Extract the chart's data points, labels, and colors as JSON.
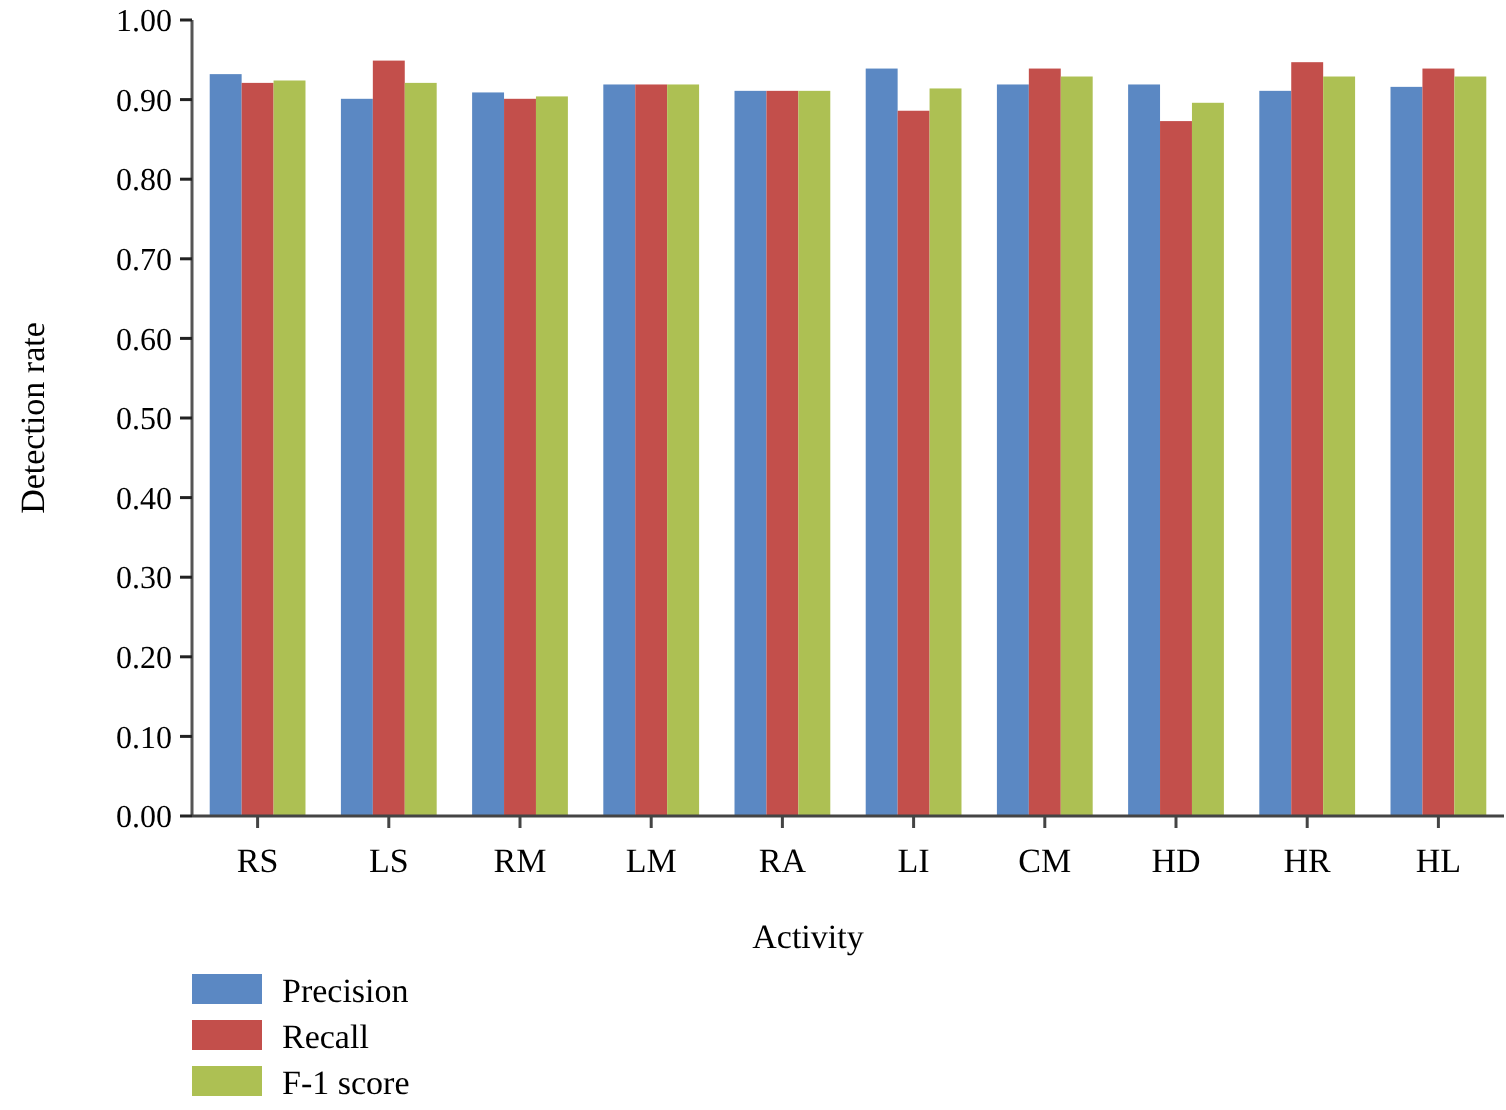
{
  "chart_data": {
    "type": "bar",
    "xlabel": "Activity",
    "ylabel": "Detection rate",
    "categories": [
      "RS",
      "LS",
      "RM",
      "LM",
      "RA",
      "LI",
      "CM",
      "HD",
      "HR",
      "HL"
    ],
    "series": [
      {
        "name": "Precision",
        "color": "#5b88c3",
        "values": [
          0.932,
          0.901,
          0.909,
          0.919,
          0.911,
          0.939,
          0.919,
          0.919,
          0.911,
          0.916
        ]
      },
      {
        "name": "Recall",
        "color": "#c34f4b",
        "values": [
          0.921,
          0.949,
          0.901,
          0.919,
          0.911,
          0.886,
          0.939,
          0.873,
          0.947,
          0.939
        ]
      },
      {
        "name": "F-1 score",
        "color": "#adc053",
        "values": [
          0.924,
          0.921,
          0.904,
          0.919,
          0.911,
          0.914,
          0.929,
          0.896,
          0.929,
          0.929
        ]
      }
    ],
    "ylim": [
      0,
      1
    ],
    "yticks": [
      {
        "value": 0,
        "label": "0.00"
      },
      {
        "value": 0.1,
        "label": "0.10"
      },
      {
        "value": 0.2,
        "label": "0.20"
      },
      {
        "value": 0.3,
        "label": "0.30"
      },
      {
        "value": 0.4,
        "label": "0.40"
      },
      {
        "value": 0.5,
        "label": "0.50"
      },
      {
        "value": 0.6,
        "label": "0.60"
      },
      {
        "value": 0.7,
        "label": "0.70"
      },
      {
        "value": 0.8,
        "label": "0.80"
      },
      {
        "value": 0.9,
        "label": "0.90"
      },
      {
        "value": 1,
        "label": "1.00"
      }
    ],
    "grid": false,
    "legend": "bottom left"
  }
}
